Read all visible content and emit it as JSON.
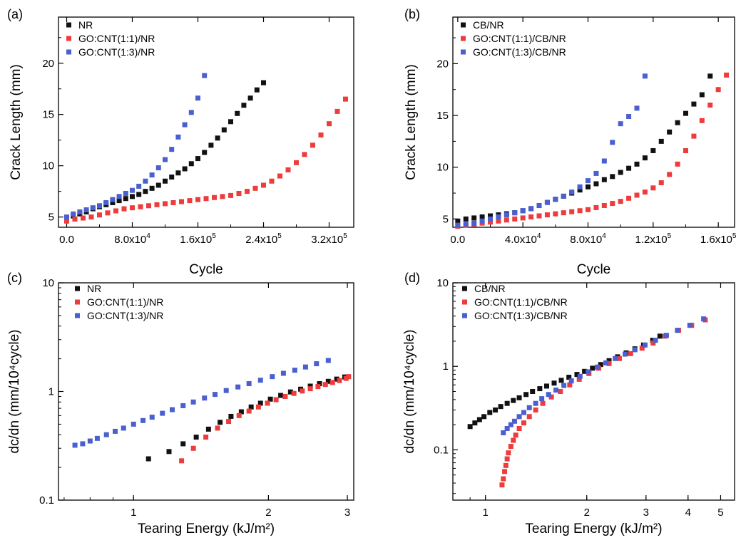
{
  "colors": {
    "black": "#111111",
    "red": "#ee3b3b",
    "blue": "#4a5fd0"
  },
  "chart_data": [
    {
      "panel": "(a)",
      "type": "scatter",
      "xlabel": "Cycle",
      "ylabel": "Crack Length (mm)",
      "xscale": "linear",
      "yscale": "linear",
      "xlim": [
        -10000,
        350000
      ],
      "ylim": [
        4,
        24.5
      ],
      "xticks": [
        0,
        80000,
        160000,
        240000,
        320000
      ],
      "xtick_labels": [
        [
          "0.0",
          ""
        ],
        [
          "8.0x10",
          "4"
        ],
        [
          "1.6x10",
          "5"
        ],
        [
          "2.4x10",
          "5"
        ],
        [
          "3.2x10",
          "5"
        ]
      ],
      "yticks": [
        5,
        10,
        15,
        20
      ],
      "ytick_labels": [
        "5",
        "10",
        "15",
        "20"
      ],
      "legend_position": "top-left",
      "series": [
        {
          "name": "NR",
          "color": "black",
          "x": [
            0,
            8000,
            16000,
            24000,
            32000,
            40000,
            48000,
            56000,
            64000,
            72000,
            80000,
            88000,
            96000,
            104000,
            112000,
            120000,
            128000,
            136000,
            144000,
            152000,
            160000,
            168000,
            176000,
            184000,
            192000,
            200000,
            208000,
            216000,
            224000,
            232000,
            240000
          ],
          "y": [
            4.9,
            5.1,
            5.3,
            5.5,
            5.8,
            6.0,
            6.2,
            6.4,
            6.6,
            6.8,
            7.0,
            7.2,
            7.5,
            7.8,
            8.1,
            8.5,
            8.9,
            9.3,
            9.7,
            10.2,
            10.7,
            11.3,
            12.0,
            12.7,
            13.5,
            14.3,
            15.1,
            15.9,
            16.6,
            17.4,
            18.1
          ]
        },
        {
          "name": "GO:CNT(1:1)/NR",
          "color": "red",
          "x": [
            0,
            10000,
            20000,
            30000,
            40000,
            50000,
            60000,
            70000,
            80000,
            90000,
            100000,
            110000,
            120000,
            130000,
            140000,
            150000,
            160000,
            170000,
            180000,
            190000,
            200000,
            210000,
            220000,
            230000,
            240000,
            250000,
            260000,
            270000,
            280000,
            290000,
            300000,
            310000,
            320000,
            330000,
            340000
          ],
          "y": [
            4.6,
            4.8,
            4.9,
            5.0,
            5.2,
            5.4,
            5.6,
            5.8,
            5.9,
            6.0,
            6.1,
            6.2,
            6.3,
            6.4,
            6.5,
            6.6,
            6.7,
            6.8,
            6.9,
            7.0,
            7.1,
            7.3,
            7.5,
            7.8,
            8.1,
            8.5,
            9.0,
            9.6,
            10.3,
            11.1,
            12.0,
            13.0,
            14.1,
            15.3,
            16.5
          ]
        },
        {
          "name": "GO:CNT(1:3)/NR",
          "color": "blue",
          "x": [
            0,
            8000,
            16000,
            24000,
            32000,
            40000,
            48000,
            56000,
            64000,
            72000,
            80000,
            88000,
            96000,
            104000,
            112000,
            120000,
            128000,
            136000,
            144000,
            152000,
            160000,
            168000
          ],
          "y": [
            5.0,
            5.3,
            5.5,
            5.7,
            5.9,
            6.1,
            6.4,
            6.7,
            7.0,
            7.3,
            7.6,
            8.0,
            8.5,
            9.1,
            9.8,
            10.6,
            11.6,
            12.8,
            14.0,
            15.2,
            16.6,
            18.8
          ]
        }
      ]
    },
    {
      "panel": "(b)",
      "type": "scatter",
      "xlabel": "Cycle",
      "ylabel": "Crack Length (mm)",
      "xscale": "linear",
      "yscale": "linear",
      "xlim": [
        -3000,
        170000
      ],
      "ylim": [
        4.2,
        24.5
      ],
      "xticks": [
        0,
        40000,
        80000,
        120000,
        160000
      ],
      "xtick_labels": [
        [
          "0.0",
          ""
        ],
        [
          "4.0x10",
          "4"
        ],
        [
          "8.0x10",
          "4"
        ],
        [
          "1.2x10",
          "5"
        ],
        [
          "1.6x10",
          "5"
        ]
      ],
      "yticks": [
        5,
        10,
        15,
        20
      ],
      "ytick_labels": [
        "5",
        "10",
        "15",
        "20"
      ],
      "legend_position": "top-left",
      "series": [
        {
          "name": "CB/NR",
          "color": "black",
          "x": [
            0,
            5000,
            10000,
            15000,
            20000,
            25000,
            30000,
            35000,
            40000,
            45000,
            50000,
            55000,
            60000,
            65000,
            70000,
            75000,
            80000,
            85000,
            90000,
            95000,
            100000,
            105000,
            110000,
            115000,
            120000,
            125000,
            130000,
            135000,
            140000,
            145000,
            150000,
            155000
          ],
          "y": [
            4.8,
            5.0,
            5.1,
            5.2,
            5.3,
            5.4,
            5.5,
            5.6,
            5.8,
            6.0,
            6.3,
            6.6,
            6.9,
            7.2,
            7.5,
            7.8,
            8.1,
            8.4,
            8.8,
            9.1,
            9.5,
            9.9,
            10.3,
            10.9,
            11.6,
            12.5,
            13.4,
            14.3,
            15.2,
            16.1,
            17.0,
            18.8
          ]
        },
        {
          "name": "GO:CNT(1:1)/CB/NR",
          "color": "red",
          "x": [
            0,
            5000,
            10000,
            15000,
            20000,
            25000,
            30000,
            35000,
            40000,
            45000,
            50000,
            55000,
            60000,
            65000,
            70000,
            75000,
            80000,
            85000,
            90000,
            95000,
            100000,
            105000,
            110000,
            115000,
            120000,
            125000,
            130000,
            135000,
            140000,
            145000,
            150000,
            155000,
            160000,
            165000
          ],
          "y": [
            4.3,
            4.4,
            4.5,
            4.6,
            4.7,
            4.8,
            4.9,
            5.0,
            5.1,
            5.2,
            5.3,
            5.4,
            5.5,
            5.6,
            5.7,
            5.8,
            5.9,
            6.1,
            6.3,
            6.5,
            6.7,
            7.0,
            7.3,
            7.6,
            8.0,
            8.5,
            9.3,
            10.3,
            11.6,
            13.0,
            14.5,
            16.0,
            17.5,
            18.9
          ]
        },
        {
          "name": "GO:CNT(1:3)/CB/NR",
          "color": "blue",
          "x": [
            0,
            5000,
            10000,
            15000,
            20000,
            25000,
            30000,
            35000,
            40000,
            45000,
            50000,
            55000,
            60000,
            65000,
            70000,
            75000,
            80000,
            85000,
            90000,
            95000,
            100000,
            105000,
            110000,
            115000
          ],
          "y": [
            4.4,
            4.5,
            4.6,
            4.8,
            5.0,
            5.2,
            5.4,
            5.6,
            5.8,
            6.0,
            6.3,
            6.6,
            6.9,
            7.2,
            7.6,
            8.1,
            8.7,
            9.4,
            10.6,
            12.4,
            14.2,
            14.9,
            15.7,
            18.8
          ]
        }
      ]
    },
    {
      "panel": "(c)",
      "type": "scatter",
      "xlabel": "Tearing Energy (kJ/m²)",
      "ylabel": "dc/dn (mm/10⁴cycle)",
      "xscale": "log",
      "yscale": "log",
      "xlim": [
        0.68,
        3.1
      ],
      "ylim": [
        0.1,
        10
      ],
      "xticks": [
        1,
        2,
        3
      ],
      "xtick_labels": [
        [
          "1",
          ""
        ],
        [
          "2",
          ""
        ],
        [
          "3",
          ""
        ]
      ],
      "yticks": [
        0.1,
        1,
        10
      ],
      "ytick_labels": [
        "0.1",
        "1",
        "10"
      ],
      "legend_position": "top-left",
      "series": [
        {
          "name": "NR",
          "color": "black",
          "x": [
            1.08,
            1.2,
            1.29,
            1.38,
            1.47,
            1.56,
            1.65,
            1.74,
            1.83,
            1.92,
            2.02,
            2.13,
            2.24,
            2.36,
            2.48,
            2.6,
            2.72,
            2.84,
            2.96
          ],
          "y": [
            0.24,
            0.28,
            0.33,
            0.38,
            0.45,
            0.52,
            0.59,
            0.65,
            0.72,
            0.78,
            0.85,
            0.92,
            0.99,
            1.05,
            1.12,
            1.18,
            1.24,
            1.3,
            1.36
          ]
        },
        {
          "name": "GO:CNT(1:1)/NR",
          "color": "red",
          "x": [
            1.28,
            1.36,
            1.45,
            1.54,
            1.63,
            1.72,
            1.81,
            1.9,
            1.99,
            2.08,
            2.18,
            2.28,
            2.38,
            2.48,
            2.58,
            2.68,
            2.78,
            2.88,
            2.98,
            3.02
          ],
          "y": [
            0.23,
            0.3,
            0.38,
            0.46,
            0.53,
            0.6,
            0.66,
            0.72,
            0.78,
            0.84,
            0.9,
            0.96,
            1.01,
            1.06,
            1.11,
            1.16,
            1.21,
            1.26,
            1.32,
            1.37
          ]
        },
        {
          "name": "GO:CNT(1:3)/NR",
          "color": "blue",
          "x": [
            0.74,
            0.77,
            0.8,
            0.83,
            0.87,
            0.91,
            0.95,
            1.0,
            1.05,
            1.1,
            1.16,
            1.22,
            1.29,
            1.36,
            1.44,
            1.52,
            1.61,
            1.71,
            1.81,
            1.92,
            2.04,
            2.16,
            2.29,
            2.42,
            2.56,
            2.72
          ],
          "y": [
            0.32,
            0.33,
            0.35,
            0.37,
            0.4,
            0.43,
            0.46,
            0.5,
            0.54,
            0.58,
            0.63,
            0.68,
            0.74,
            0.8,
            0.87,
            0.94,
            1.02,
            1.1,
            1.18,
            1.27,
            1.37,
            1.47,
            1.57,
            1.68,
            1.8,
            1.93
          ]
        }
      ]
    },
    {
      "panel": "(d)",
      "type": "scatter",
      "xlabel": "Tearing Energy (kJ/m²)",
      "ylabel": "dc/dn (mm/10⁴cycle)",
      "xscale": "log",
      "yscale": "log",
      "xlim": [
        0.8,
        5.5
      ],
      "ylim": [
        0.025,
        10
      ],
      "xticks": [
        1,
        2,
        3,
        4,
        5
      ],
      "xtick_labels": [
        [
          "1",
          ""
        ],
        [
          "2",
          ""
        ],
        [
          "3",
          ""
        ],
        [
          "4",
          ""
        ],
        [
          "5",
          ""
        ]
      ],
      "yticks": [
        0.1,
        1,
        10
      ],
      "ytick_labels": [
        "0.1",
        "1",
        "10"
      ],
      "legend_position": "top-left",
      "series": [
        {
          "name": "CB/NR",
          "color": "black",
          "x": [
            0.9,
            0.93,
            0.96,
            0.99,
            1.03,
            1.07,
            1.11,
            1.16,
            1.21,
            1.26,
            1.32,
            1.38,
            1.45,
            1.52,
            1.6,
            1.68,
            1.77,
            1.87,
            1.97,
            2.08,
            2.2,
            2.33,
            2.47,
            2.62,
            2.78,
            2.95,
            3.14,
            3.3
          ],
          "y": [
            0.19,
            0.21,
            0.23,
            0.25,
            0.28,
            0.3,
            0.33,
            0.36,
            0.39,
            0.42,
            0.46,
            0.5,
            0.54,
            0.58,
            0.63,
            0.68,
            0.74,
            0.8,
            0.87,
            0.95,
            1.05,
            1.17,
            1.3,
            1.45,
            1.62,
            1.8,
            2.05,
            2.3
          ]
        },
        {
          "name": "GO:CNT(1:1)/CB/NR",
          "color": "red",
          "x": [
            1.12,
            1.13,
            1.14,
            1.15,
            1.16,
            1.17,
            1.19,
            1.21,
            1.23,
            1.26,
            1.3,
            1.35,
            1.41,
            1.48,
            1.57,
            1.67,
            1.78,
            1.9,
            2.03,
            2.17,
            2.33,
            2.5,
            2.7,
            2.92,
            3.15,
            3.42,
            3.75,
            4.1,
            4.5
          ],
          "y": [
            0.038,
            0.045,
            0.055,
            0.065,
            0.078,
            0.092,
            0.11,
            0.13,
            0.15,
            0.18,
            0.21,
            0.25,
            0.3,
            0.36,
            0.43,
            0.5,
            0.6,
            0.7,
            0.82,
            0.95,
            1.08,
            1.24,
            1.42,
            1.65,
            1.9,
            2.3,
            2.7,
            3.1,
            3.6
          ]
        },
        {
          "name": "GO:CNT(1:3)/CB/NR",
          "color": "blue",
          "x": [
            1.13,
            1.16,
            1.19,
            1.22,
            1.26,
            1.3,
            1.35,
            1.41,
            1.47,
            1.54,
            1.62,
            1.71,
            1.8,
            1.91,
            2.02,
            2.15,
            2.28,
            2.43,
            2.6,
            2.78,
            2.98,
            3.2,
            3.45,
            3.72,
            4.05,
            4.45
          ],
          "y": [
            0.16,
            0.18,
            0.2,
            0.22,
            0.25,
            0.28,
            0.32,
            0.36,
            0.41,
            0.46,
            0.52,
            0.59,
            0.67,
            0.76,
            0.86,
            0.98,
            1.1,
            1.24,
            1.4,
            1.58,
            1.8,
            2.05,
            2.35,
            2.7,
            3.1,
            3.7
          ]
        }
      ]
    }
  ]
}
